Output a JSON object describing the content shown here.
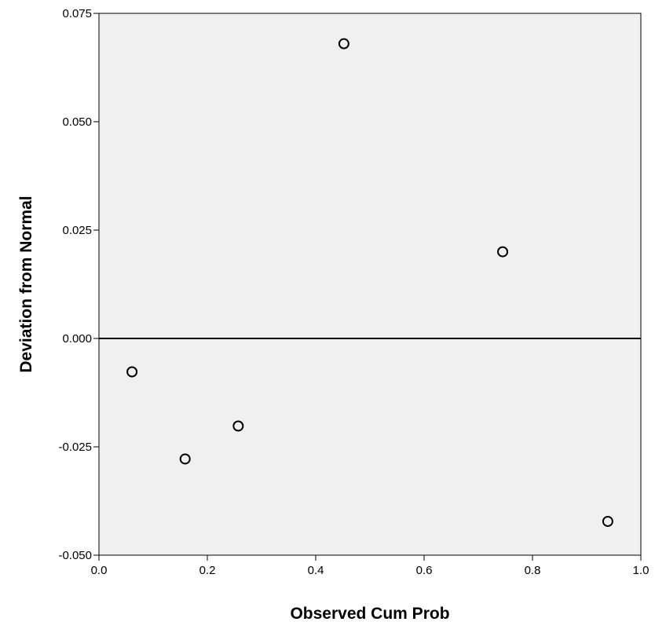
{
  "chart_data": {
    "type": "scatter",
    "title": "",
    "xlabel": "Observed Cum Prob",
    "ylabel": "Deviation from Normal",
    "xlim": [
      0.0,
      1.0
    ],
    "ylim": [
      -0.05,
      0.075
    ],
    "x_ticks": [
      "0.0",
      "0.2",
      "0.4",
      "0.6",
      "0.8",
      "1.0"
    ],
    "y_ticks": [
      "-0.050",
      "-0.025",
      "0.000",
      "0.025",
      "0.050",
      "0.075"
    ],
    "reference_line": {
      "y": 0.0
    },
    "grid": false,
    "plot_background": "#f0f0f0",
    "marker_fill": "#f0f0f0",
    "marker_stroke": "#000000",
    "series": [
      {
        "points": [
          {
            "x": 0.061,
            "y": -0.0077
          },
          {
            "x": 0.159,
            "y": -0.0278
          },
          {
            "x": 0.257,
            "y": -0.0202
          },
          {
            "x": 0.452,
            "y": 0.068
          },
          {
            "x": 0.745,
            "y": 0.02
          },
          {
            "x": 0.939,
            "y": -0.0422
          }
        ]
      }
    ]
  }
}
